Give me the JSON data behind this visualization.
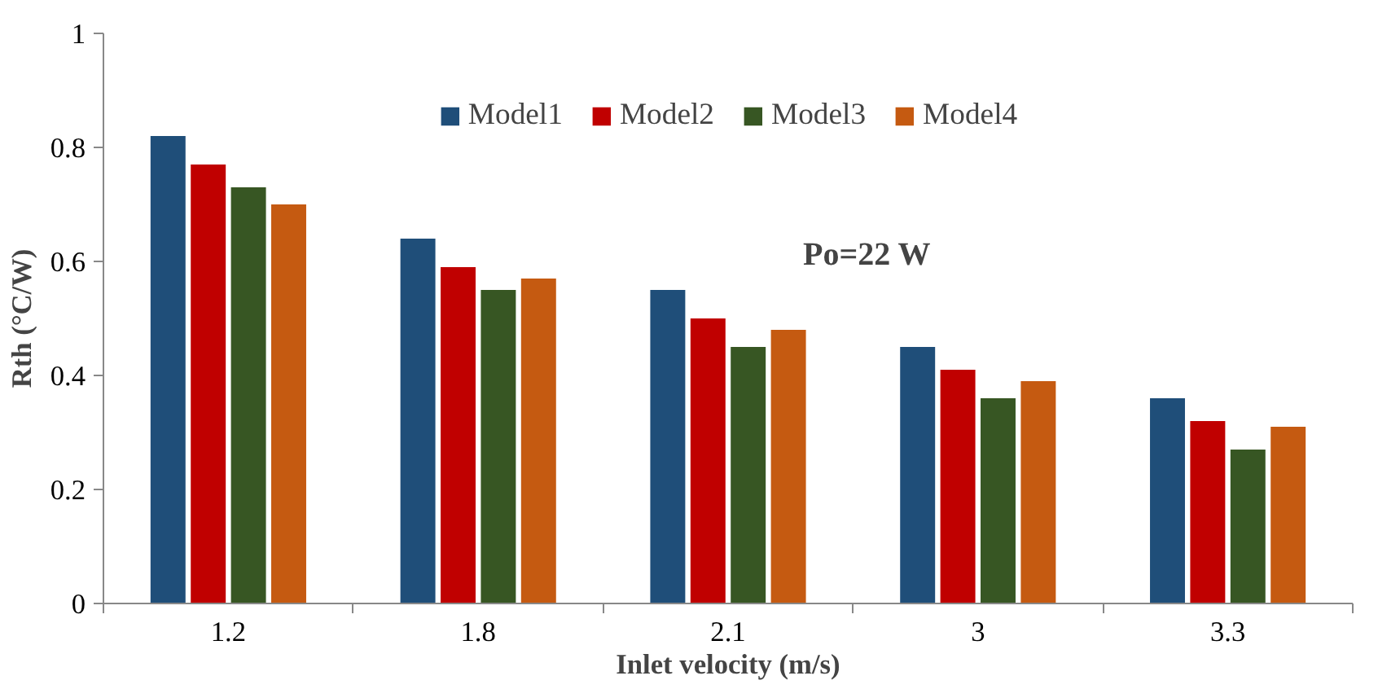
{
  "chart_data": {
    "type": "bar",
    "xlabel": "Inlet velocity (m/s)",
    "ylabel": "Rth (°C/W)",
    "categories": [
      "1.2",
      "1.8",
      "2.1",
      "3",
      "3.3"
    ],
    "series": [
      {
        "name": "Model1",
        "color": "#1f4e79",
        "values": [
          0.82,
          0.64,
          0.55,
          0.45,
          0.36
        ]
      },
      {
        "name": "Model2",
        "color": "#c00000",
        "values": [
          0.77,
          0.59,
          0.5,
          0.41,
          0.32
        ]
      },
      {
        "name": "Model3",
        "color": "#375623",
        "values": [
          0.73,
          0.55,
          0.45,
          0.36,
          0.27
        ]
      },
      {
        "name": "Model4",
        "color": "#c55a11",
        "values": [
          0.7,
          0.57,
          0.48,
          0.39,
          0.31
        ]
      }
    ],
    "ylim": [
      0,
      1
    ],
    "yticks": [
      0,
      0.2,
      0.4,
      0.6,
      0.8,
      1
    ],
    "annotations": [
      "Po=22 W"
    ],
    "legend": "top",
    "grid": false
  }
}
